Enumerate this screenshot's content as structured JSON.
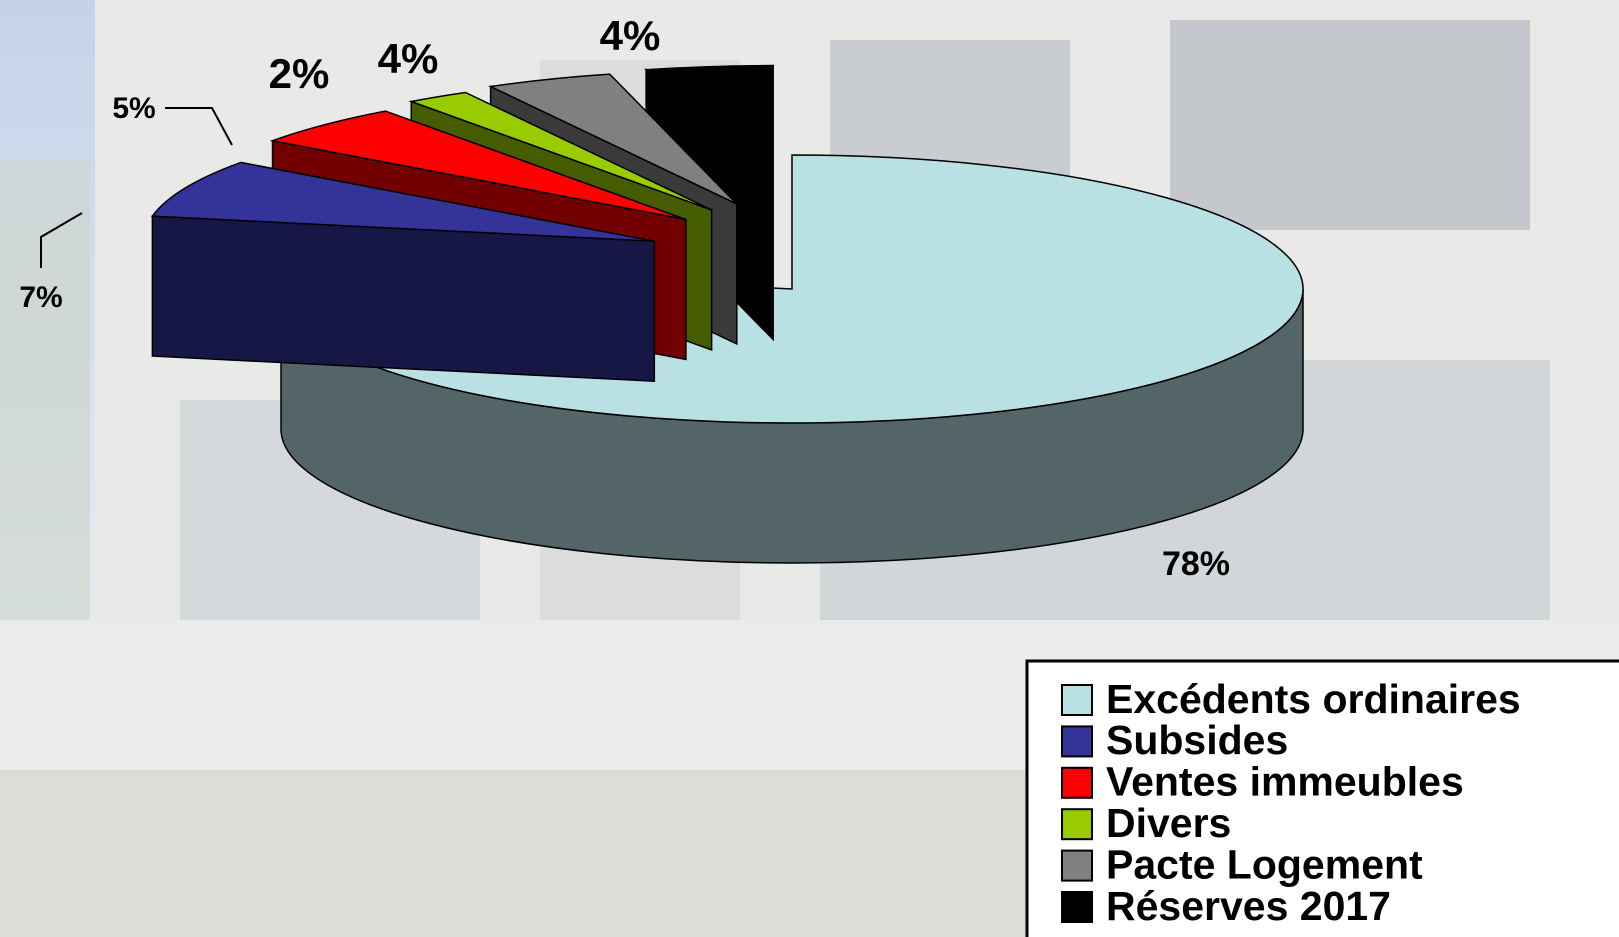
{
  "chart_data": {
    "type": "pie",
    "categories": [
      "Excédents ordinaires",
      "Subsides",
      "Ventes immeubles",
      "Divers",
      "Pacte Logement",
      "Réserves 2017"
    ],
    "values": [
      78,
      7,
      5,
      2,
      4,
      4
    ],
    "value_labels": [
      "78%",
      "7%",
      "5%",
      "2%",
      "4%",
      "4%"
    ],
    "colors": [
      "#b9e0e3",
      "#333399",
      "#ff0000",
      "#99cc00",
      "#808080",
      "#000000"
    ]
  }
}
